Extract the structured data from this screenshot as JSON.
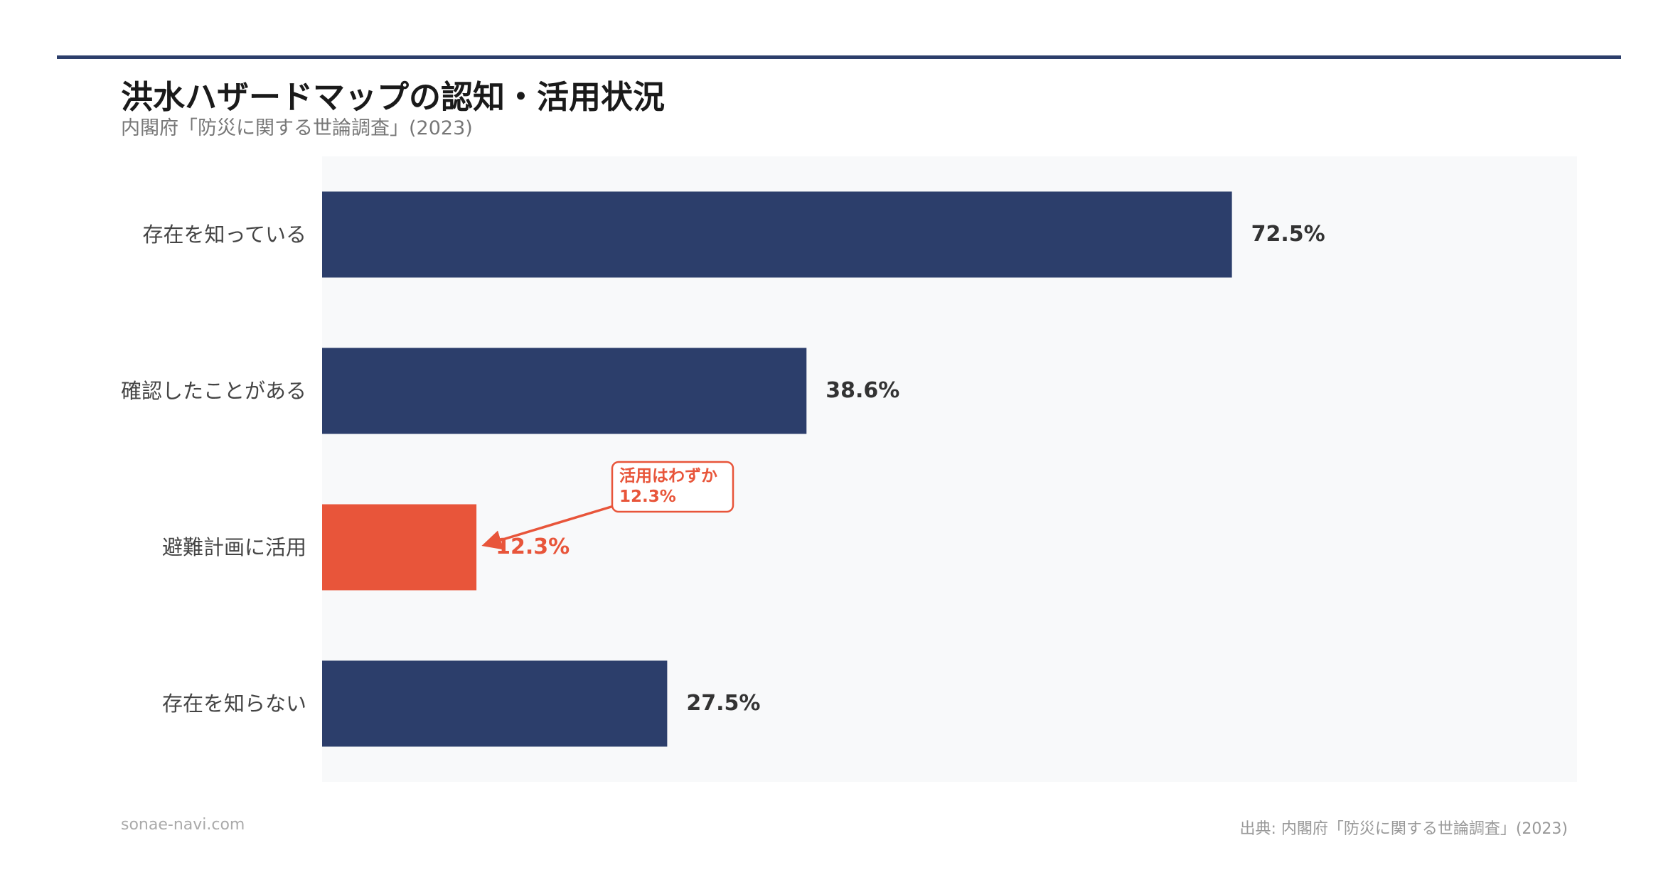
{
  "title": "洪水ハザードマップの認知・活用状況",
  "subtitle": "内閣府「防災に関する世論調査」(2023)",
  "footer": {
    "site": "sonae-navi.com",
    "source": "出典: 内閣府「防災に関する世論調査」(2023)"
  },
  "colors": {
    "primary": "#2c3e6b",
    "highlight": "#e8553a",
    "plot_background": "#f8f9fa",
    "rule": "#2c3e6b"
  },
  "annotation": {
    "line1": "活用はわずか",
    "line2": "12.3%",
    "target_category": "避難計画に活用"
  },
  "chart_data": {
    "type": "bar",
    "orientation": "horizontal",
    "categories": [
      "存在を知っている",
      "確認したことがある",
      "避難計画に活用",
      "存在を知らない"
    ],
    "values": [
      72.5,
      38.6,
      12.3,
      27.5
    ],
    "value_labels": [
      "72.5%",
      "38.6%",
      "12.3%",
      "27.5%"
    ],
    "highlight": [
      false,
      false,
      true,
      false
    ],
    "unit": "%",
    "xlim": [
      0,
      100
    ],
    "grid": false,
    "legend": "none"
  }
}
